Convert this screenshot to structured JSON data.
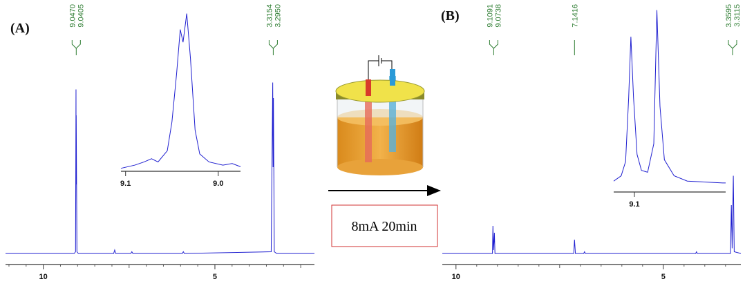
{
  "chart_data": [
    {
      "type": "line",
      "title": "(A)",
      "color": "#1f1fd0",
      "x": [
        11.1,
        9.1,
        9.06,
        9.047,
        9.044,
        9.0405,
        9.02,
        8.98,
        7.95,
        7.92,
        7.89,
        7.45,
        7.42,
        7.39,
        5.95,
        5.92,
        5.89,
        3.36,
        3.3154,
        3.305,
        3.295,
        3.27,
        3.2,
        2.1
      ],
      "values": [
        0,
        0,
        1,
        95,
        40,
        80,
        1,
        0,
        0,
        2,
        0,
        0,
        1,
        0,
        0,
        1,
        0,
        1,
        99,
        50,
        90,
        1,
        0,
        0
      ],
      "xlim": [
        11.1,
        2.1
      ],
      "ylim": [
        0,
        100
      ],
      "xticks": [
        10,
        5
      ],
      "annotations": [
        {
          "x": 9.04,
          "labels": [
            "9.0470",
            "9.0405"
          ]
        },
        {
          "x": 3.3,
          "labels": [
            "3.3154",
            "3.2950"
          ]
        }
      ]
    },
    {
      "type": "line",
      "color": "#1f1fd0",
      "x": [
        9.105,
        9.09,
        9.08,
        9.072,
        9.065,
        9.055,
        9.05,
        9.045,
        9.041,
        9.038,
        9.034,
        9.03,
        9.025,
        9.02,
        9.01,
        8.995,
        8.985,
        8.976
      ],
      "values": [
        1,
        3,
        5,
        7,
        5,
        12,
        30,
        60,
        88,
        80,
        98,
        70,
        25,
        10,
        5,
        3,
        4,
        2
      ],
      "xlim": [
        9.105,
        8.976
      ],
      "ylim": [
        0,
        100
      ],
      "xticks": [
        9.1,
        {
          "value": 9,
          "label": "9.0"
        }
      ]
    },
    {
      "type": "line",
      "title": "(B)",
      "color": "#1f1fd0",
      "x": [
        10.33,
        9.12,
        9.1091,
        9.095,
        9.0738,
        9.06,
        7.16,
        7.1416,
        7.12,
        6.92,
        6.9,
        6.88,
        4.22,
        4.2,
        4.18,
        3.38,
        3.3595,
        3.34,
        3.3115,
        3.29,
        3.13
      ],
      "values": [
        0,
        0,
        16,
        2,
        12,
        0,
        0,
        8,
        0,
        0,
        1,
        0,
        0,
        1,
        0,
        0,
        28,
        3,
        45,
        1,
        0
      ],
      "xlim": [
        10.33,
        3.13
      ],
      "ylim": [
        0,
        100
      ],
      "xticks": [
        10,
        5
      ],
      "annotations": [
        {
          "x": 9.09,
          "labels": [
            "9.1091",
            "9.0738"
          ]
        },
        {
          "x": 7.1416,
          "labels": [
            "7.1416"
          ]
        },
        {
          "x": 3.33,
          "labels": [
            "3.3595",
            "3.3115"
          ]
        }
      ]
    },
    {
      "type": "line",
      "color": "#1f1fd0",
      "x": [
        9.1235,
        9.115,
        9.11,
        9.1065,
        9.104,
        9.101,
        9.097,
        9.092,
        9.085,
        9.078,
        9.0745,
        9.071,
        9.066,
        9.055,
        9.04,
        9.0,
        8.9965
      ],
      "values": [
        3,
        6,
        14,
        50,
        84,
        50,
        18,
        9,
        8,
        24,
        99,
        45,
        15,
        6,
        3,
        2,
        2
      ],
      "xlim": [
        9.1235,
        8.9965
      ],
      "ylim": [
        0,
        100
      ],
      "xticks": [
        9.1
      ]
    }
  ],
  "condition": "8mA  20min"
}
